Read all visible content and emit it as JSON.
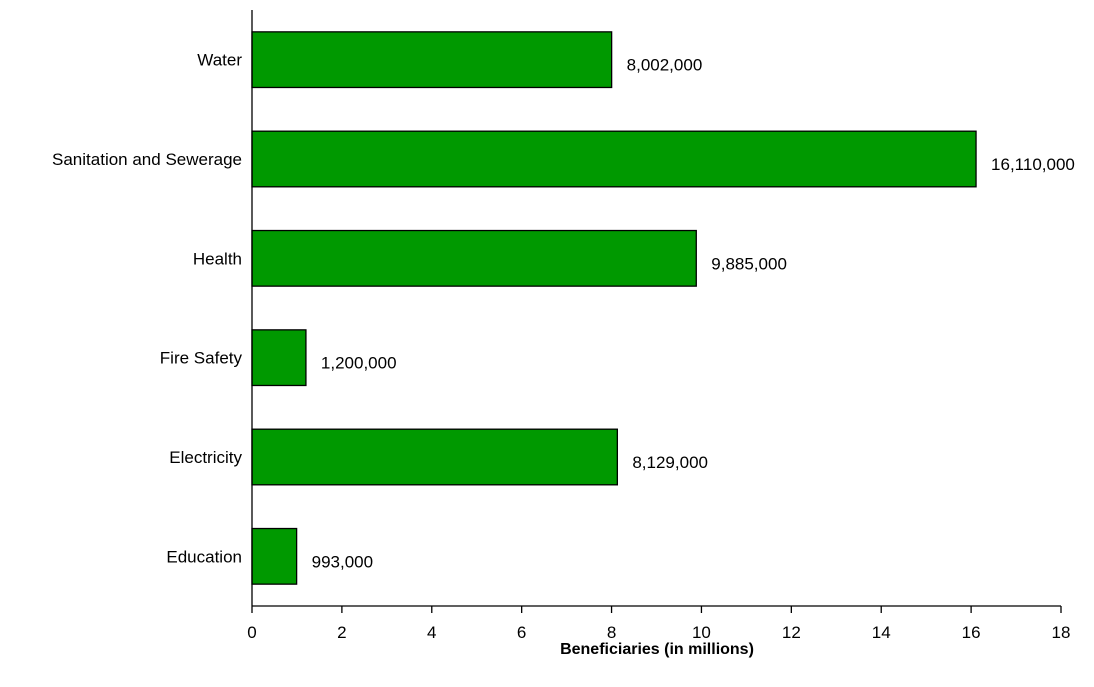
{
  "chart_data": {
    "type": "bar",
    "orientation": "horizontal",
    "categories": [
      "Water",
      "Sanitation and Sewerage",
      "Health",
      "Fire Safety",
      "Electricity",
      "Education"
    ],
    "values": [
      8.002,
      16.11,
      9.885,
      1.2,
      8.129,
      0.993
    ],
    "data_labels": [
      "8,002,000",
      "16,110,000",
      "9,885,000",
      "1,200,000",
      "8,129,000",
      "993,000"
    ],
    "xlabel": "Beneficiaries (in millions)",
    "ylabel": "",
    "title": "",
    "xlim": [
      0,
      18
    ],
    "xticks": [
      "0",
      "2",
      "4",
      "6",
      "8",
      "10",
      "12",
      "14",
      "16",
      "18"
    ],
    "grid": false,
    "legend": "none",
    "colors": {
      "bar_fill": "#009900",
      "bar_stroke": "#000000",
      "axis": "#000000"
    }
  }
}
